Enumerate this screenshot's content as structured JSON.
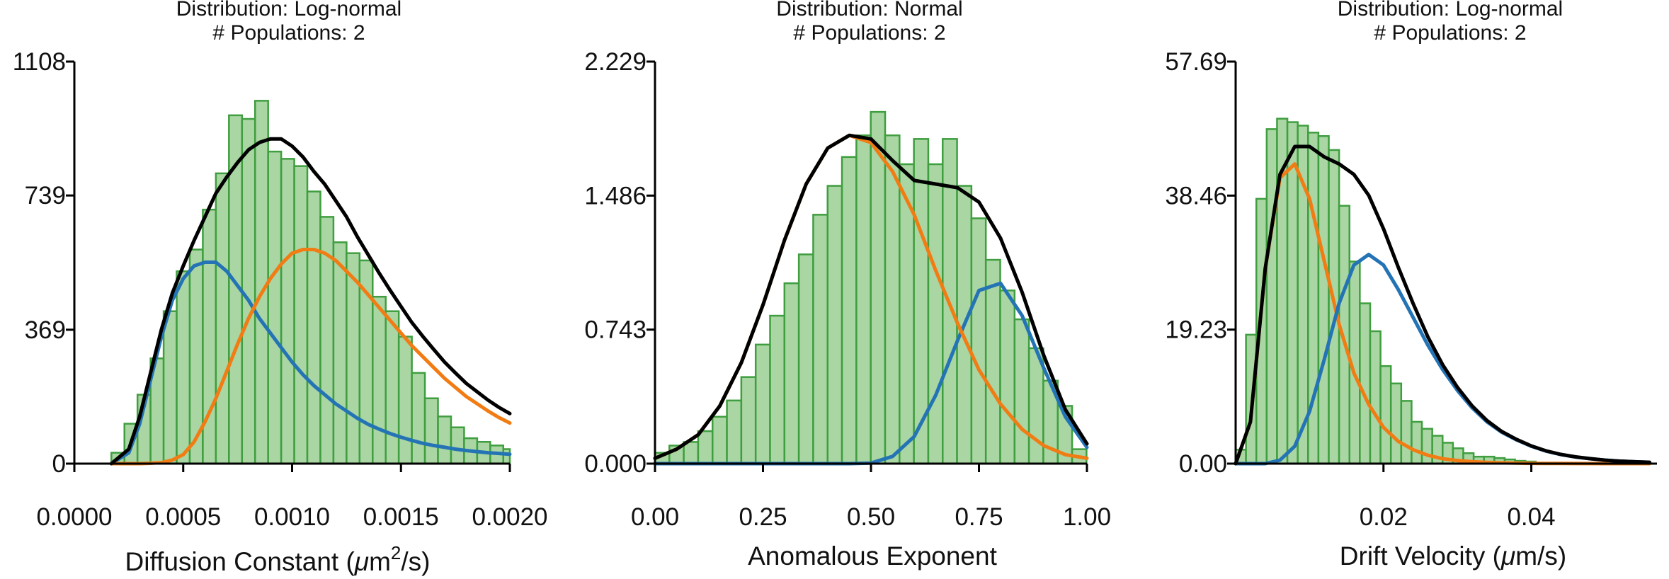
{
  "colors": {
    "bar_fill": "#a9d6a3",
    "bar_edge": "#3f9e3f",
    "series_blue": "#2474b5",
    "series_orange": "#f27c14",
    "total_black": "#000000",
    "axis": "#000000"
  },
  "chart_data": [
    {
      "type": "bar",
      "title_line1": "Distribution: Log-normal",
      "title_line2": "# Populations: 2",
      "xlabel_pre": "Diffusion Constant (",
      "xlabel_mu": "μ",
      "xlabel_unit": "m",
      "xlabel_sup": "2",
      "xlabel_post": "/s)",
      "xlim": [
        0.0,
        0.002
      ],
      "ylim": [
        0,
        1108
      ],
      "y_ticks": [
        {
          "value": 0,
          "label": "0"
        },
        {
          "value": 369,
          "label": "369"
        },
        {
          "value": 739,
          "label": "739"
        },
        {
          "value": 1108,
          "label": "1108"
        }
      ],
      "x_ticks": [
        {
          "value": 0.0,
          "label": "0.0000"
        },
        {
          "value": 0.0005,
          "label": "0.0005"
        },
        {
          "value": 0.001,
          "label": "0.0010"
        },
        {
          "value": 0.0015,
          "label": "0.0015"
        },
        {
          "value": 0.002,
          "label": "0.0020"
        }
      ],
      "histogram": {
        "bin_edges_start": 0.00017,
        "bin_width": 6e-05,
        "counts": [
          30,
          110,
          190,
          290,
          420,
          530,
          590,
          700,
          800,
          960,
          950,
          1000,
          860,
          840,
          820,
          750,
          680,
          610,
          580,
          560,
          460,
          420,
          350,
          250,
          180,
          130,
          100,
          70,
          60,
          50,
          40
        ]
      },
      "curve_x": [
        0.00017,
        0.00025,
        0.0003,
        0.00035,
        0.0004,
        0.00045,
        0.0005,
        0.00055,
        0.0006,
        0.00065,
        0.0007,
        0.00075,
        0.0008,
        0.00085,
        0.0009,
        0.00095,
        0.001,
        0.00105,
        0.0011,
        0.00115,
        0.0012,
        0.00125,
        0.0013,
        0.00135,
        0.0014,
        0.00145,
        0.0015,
        0.00155,
        0.0016,
        0.00165,
        0.0017,
        0.00175,
        0.0018,
        0.00185,
        0.0019,
        0.00195,
        0.002
      ],
      "series": [
        {
          "color_key": "series_blue",
          "values": [
            0,
            30,
            110,
            230,
            350,
            450,
            510,
            545,
            555,
            555,
            530,
            490,
            450,
            400,
            360,
            320,
            280,
            245,
            215,
            190,
            165,
            145,
            125,
            108,
            95,
            83,
            73,
            64,
            56,
            50,
            45,
            40,
            36,
            33,
            30,
            28,
            26
          ]
        },
        {
          "color_key": "series_orange",
          "values": [
            0,
            0,
            0,
            1,
            3,
            10,
            25,
            60,
            115,
            180,
            255,
            330,
            400,
            460,
            510,
            550,
            580,
            590,
            590,
            580,
            560,
            530,
            500,
            465,
            430,
            395,
            360,
            325,
            295,
            265,
            235,
            210,
            185,
            165,
            145,
            127,
            112
          ]
        },
        {
          "color_key": "total_black",
          "values": [
            0,
            40,
            130,
            250,
            370,
            470,
            545,
            615,
            680,
            745,
            790,
            830,
            865,
            885,
            895,
            895,
            875,
            845,
            805,
            770,
            725,
            680,
            625,
            575,
            525,
            478,
            433,
            389,
            351,
            315,
            280,
            250,
            221,
            198,
            175,
            155,
            138
          ]
        }
      ]
    },
    {
      "type": "bar",
      "title_line1": "Distribution: Normal",
      "title_line2": "# Populations: 2",
      "xlabel_pre": "Anomalous Exponent",
      "xlim": [
        0.0,
        1.0
      ],
      "ylim": [
        0,
        2.229
      ],
      "y_ticks": [
        {
          "value": 0,
          "label": "0.000"
        },
        {
          "value": 0.743,
          "label": "0.743"
        },
        {
          "value": 1.486,
          "label": "1.486"
        },
        {
          "value": 2.229,
          "label": "2.229"
        }
      ],
      "x_ticks": [
        {
          "value": 0.0,
          "label": "0.00"
        },
        {
          "value": 0.25,
          "label": "0.25"
        },
        {
          "value": 0.5,
          "label": "0.50"
        },
        {
          "value": 0.75,
          "label": "0.75"
        },
        {
          "value": 1.0,
          "label": "1.00"
        }
      ],
      "histogram": {
        "bin_edges_start": 0.0,
        "bin_width": 0.0333,
        "counts": [
          0.06,
          0.1,
          0.12,
          0.18,
          0.26,
          0.35,
          0.48,
          0.66,
          0.82,
          1.0,
          1.16,
          1.38,
          1.54,
          1.7,
          1.82,
          1.95,
          1.82,
          1.66,
          1.8,
          1.66,
          1.8,
          1.54,
          1.36,
          1.13,
          0.96,
          0.8,
          0.64,
          0.46,
          0.32,
          0.08
        ]
      },
      "curve_x": [
        0.0,
        0.05,
        0.1,
        0.15,
        0.2,
        0.25,
        0.3,
        0.35,
        0.4,
        0.45,
        0.5,
        0.55,
        0.6,
        0.65,
        0.7,
        0.75,
        0.8,
        0.85,
        0.9,
        0.95,
        1.0
      ],
      "series": [
        {
          "color_key": "series_blue",
          "values": [
            0,
            0,
            0,
            0,
            0,
            0,
            0,
            0,
            0,
            0,
            0.003,
            0.04,
            0.15,
            0.38,
            0.68,
            0.96,
            1.0,
            0.82,
            0.53,
            0.26,
            0.09
          ]
        },
        {
          "color_key": "series_orange",
          "values": [
            0.03,
            0.08,
            0.16,
            0.32,
            0.56,
            0.88,
            1.24,
            1.55,
            1.75,
            1.82,
            1.78,
            1.62,
            1.38,
            1.07,
            0.78,
            0.52,
            0.33,
            0.19,
            0.1,
            0.05,
            0.03
          ]
        },
        {
          "color_key": "total_black",
          "values": [
            0.03,
            0.08,
            0.16,
            0.32,
            0.56,
            0.88,
            1.24,
            1.55,
            1.75,
            1.82,
            1.8,
            1.68,
            1.57,
            1.55,
            1.53,
            1.45,
            1.25,
            0.95,
            0.6,
            0.3,
            0.11
          ]
        }
      ]
    },
    {
      "type": "bar",
      "title_line1": "Distribution: Log-normal",
      "title_line2": "# Populations: 2",
      "xlabel_pre": "Drift Velocity (",
      "xlabel_mu": "μ",
      "xlabel_unit": "m/s)",
      "xlim": [
        0.0,
        0.057
      ],
      "ylim": [
        0,
        57.69
      ],
      "y_ticks": [
        {
          "value": 0,
          "label": "0.00"
        },
        {
          "value": 19.23,
          "label": "19.23"
        },
        {
          "value": 38.46,
          "label": "38.46"
        },
        {
          "value": 57.69,
          "label": "57.69"
        }
      ],
      "x_ticks": [
        {
          "value": 0.02,
          "label": "0.02"
        },
        {
          "value": 0.04,
          "label": "0.04"
        }
      ],
      "histogram": {
        "bin_edges_start": 0.0,
        "bin_width": 0.0014,
        "counts": [
          2.0,
          18.5,
          38.0,
          48.0,
          49.5,
          49.0,
          48.5,
          47.5,
          47.0,
          45.0,
          37.0,
          29.0,
          23.0,
          19.0,
          14.0,
          11.5,
          9.0,
          6.0,
          5.0,
          4.0,
          3.0,
          2.2,
          1.5,
          1.0,
          1.0,
          0.8,
          0.6,
          0.4,
          0.3
        ]
      },
      "curve_x": [
        0.0,
        0.002,
        0.004,
        0.006,
        0.008,
        0.01,
        0.012,
        0.014,
        0.016,
        0.018,
        0.02,
        0.022,
        0.024,
        0.026,
        0.028,
        0.03,
        0.032,
        0.034,
        0.036,
        0.038,
        0.04,
        0.042,
        0.044,
        0.046,
        0.048,
        0.05,
        0.052,
        0.054,
        0.056
      ],
      "series": [
        {
          "color_key": "series_orange",
          "values": [
            0,
            6,
            28,
            41,
            43,
            38,
            29,
            20,
            13,
            8.5,
            5.2,
            3.2,
            2.0,
            1.2,
            0.7,
            0.45,
            0.28,
            0.18,
            0.11,
            0.07,
            0.04,
            0.03,
            0.02,
            0.01,
            0.01,
            0.0,
            0.0,
            0.0,
            0.0
          ]
        },
        {
          "color_key": "series_blue",
          "values": [
            0,
            0,
            0,
            0.5,
            2.5,
            7.5,
            15,
            23,
            28.5,
            30,
            28.5,
            25,
            21,
            17,
            13.5,
            10.5,
            8,
            6,
            4.5,
            3.4,
            2.5,
            1.8,
            1.3,
            0.95,
            0.7,
            0.5,
            0.36,
            0.26,
            0.19
          ]
        },
        {
          "color_key": "total_black",
          "values": [
            0,
            6,
            28,
            41.5,
            45.5,
            45.5,
            44,
            43,
            41.5,
            38.5,
            33.7,
            28.2,
            23,
            18.2,
            14.2,
            10.95,
            8.28,
            6.18,
            4.61,
            3.47,
            2.54,
            1.83,
            1.32,
            0.96,
            0.71,
            0.5,
            0.36,
            0.26,
            0.19
          ]
        }
      ]
    }
  ]
}
